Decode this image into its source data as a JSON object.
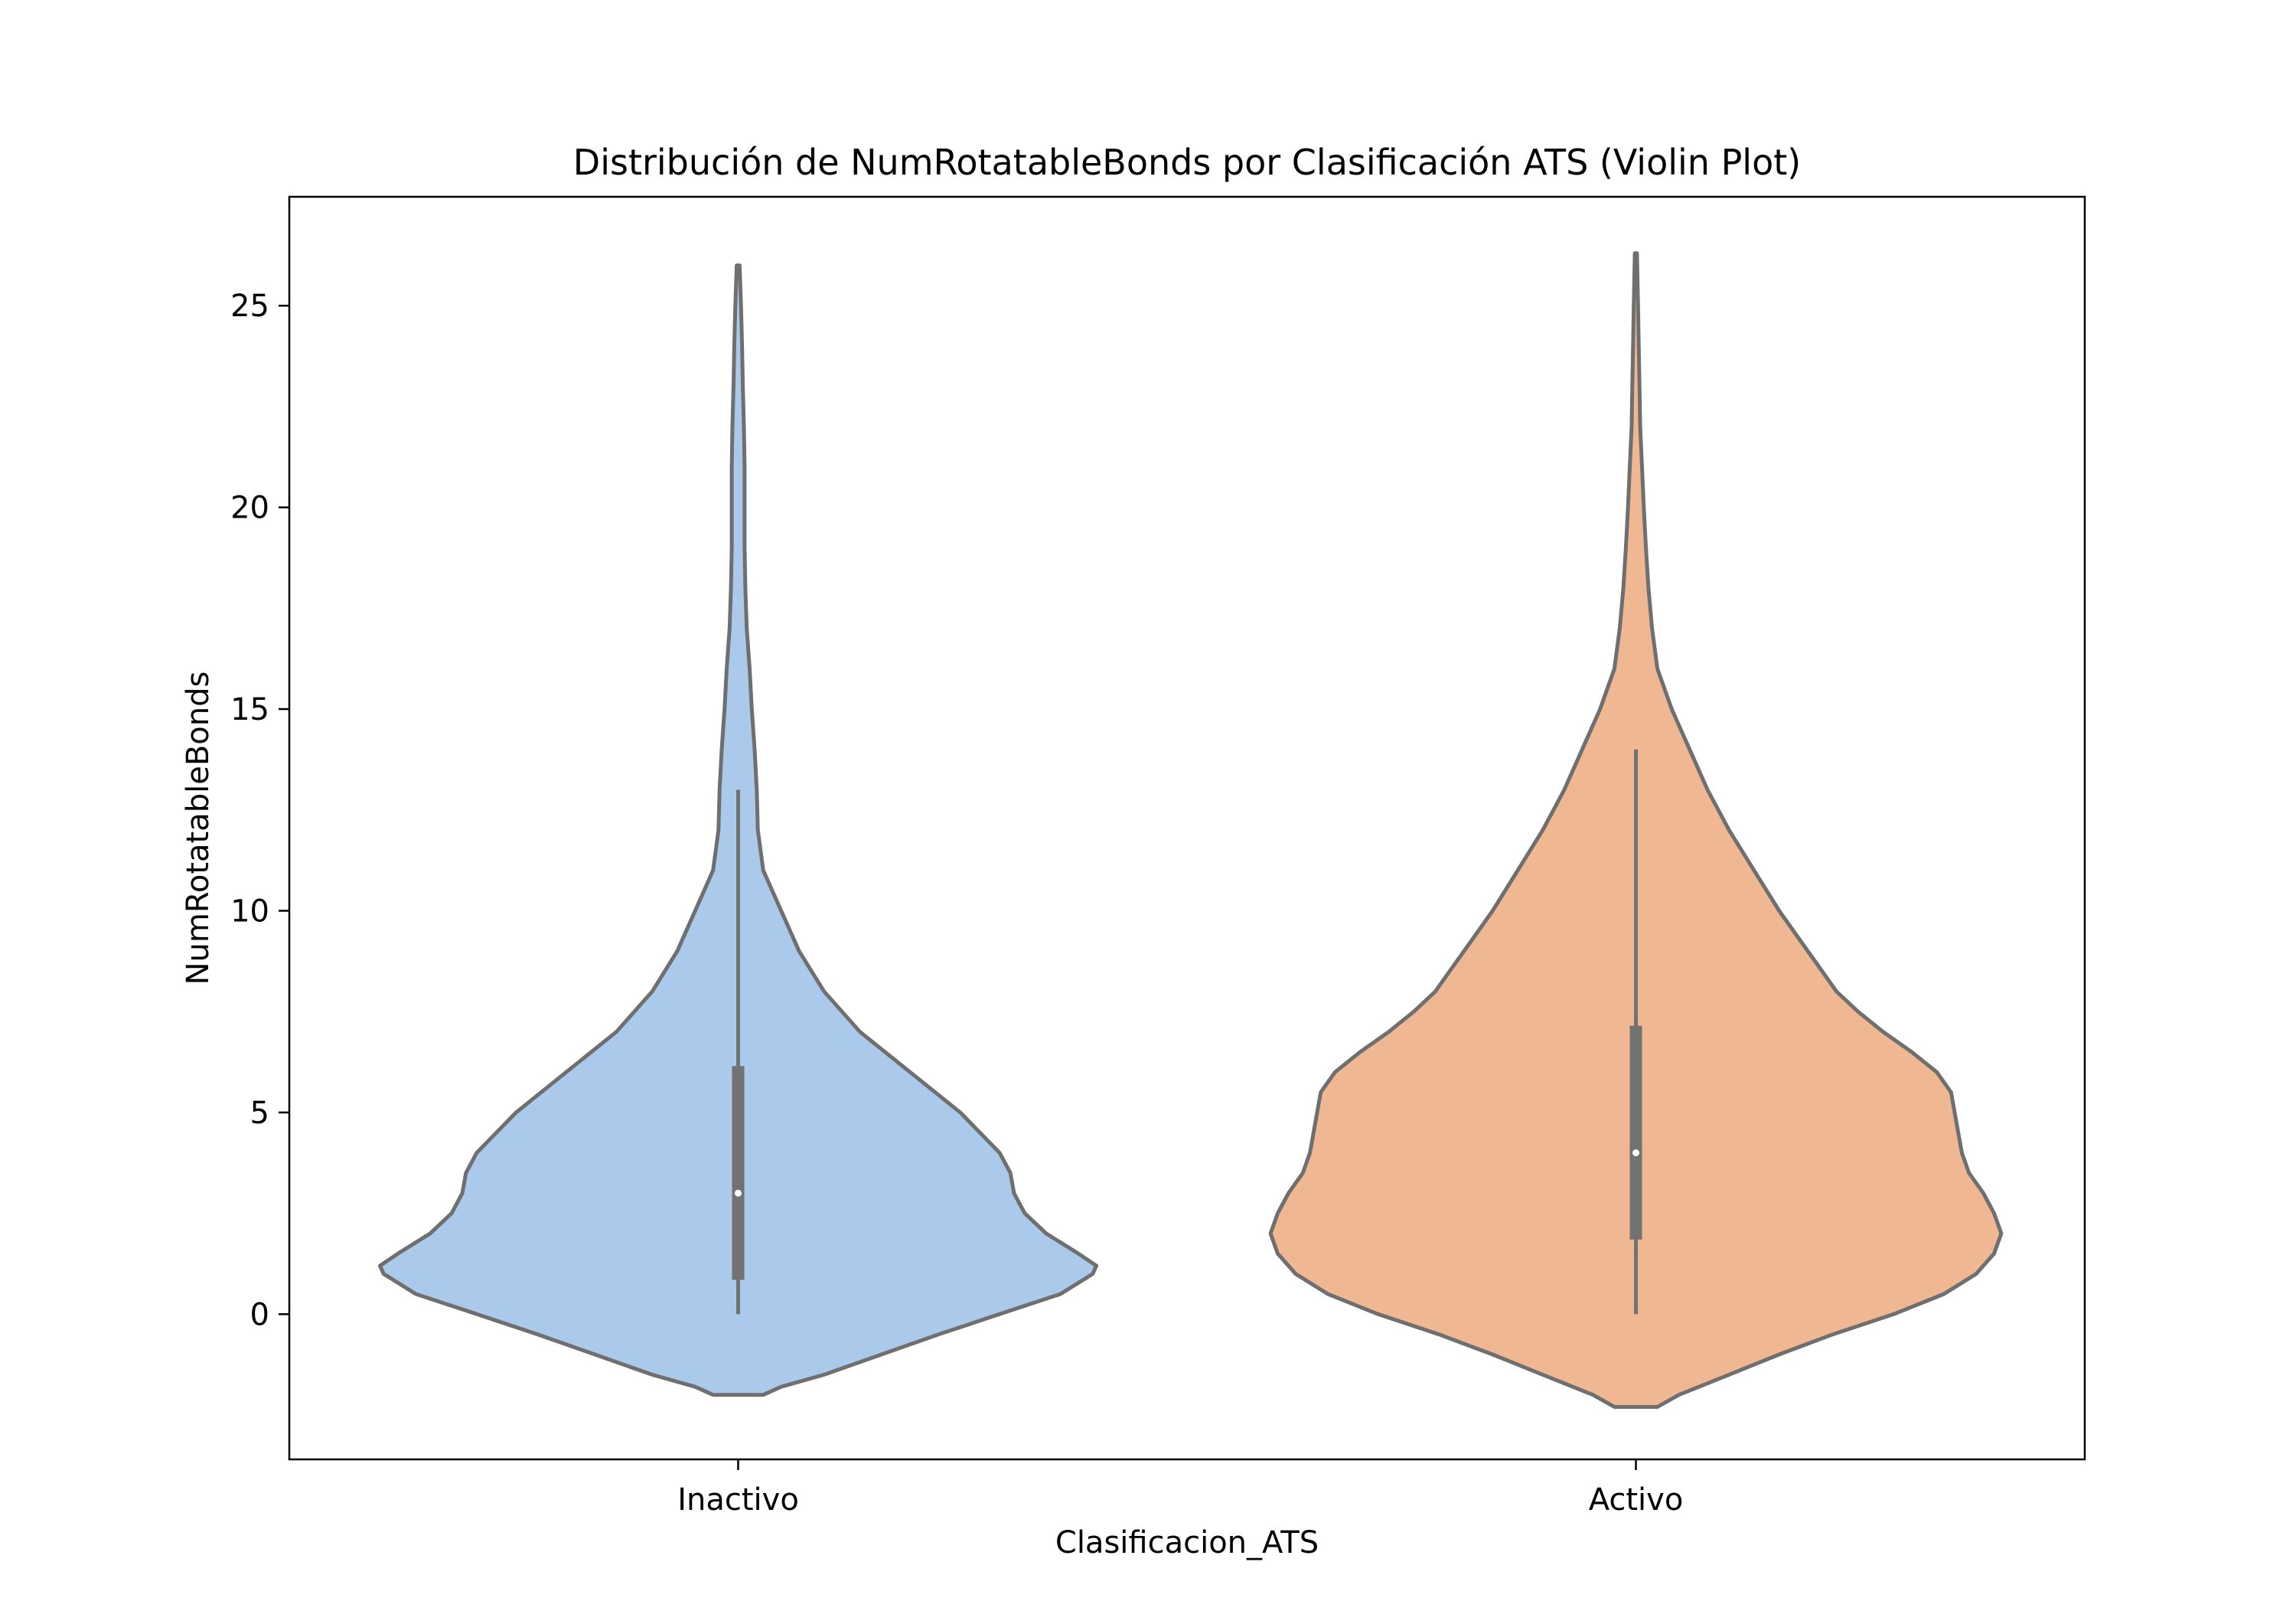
{
  "chart_data": {
    "type": "violin",
    "title": "Distribución de NumRotatableBonds por Clasificación ATS (Violin Plot)",
    "xlabel": "Clasificacion_ATS",
    "ylabel": "NumRotatableBonds",
    "categories": [
      "Inactivo",
      "Activo"
    ],
    "ylim": [
      -3.6,
      27.7
    ],
    "yticks": [
      0,
      5,
      10,
      15,
      20,
      25
    ],
    "grid": false,
    "colors": {
      "Inactivo": "#abc9ea",
      "Activo": "#efb792",
      "outline": "#6f6f6f",
      "box": "#727272",
      "median": "#ffffff"
    },
    "violins": [
      {
        "category": "Inactivo",
        "range": [
          -2.0,
          26.0
        ],
        "box": {
          "whisker_low": 0,
          "q1": 0.85,
          "median": 3,
          "q3": 6.15,
          "whisker_high": 13
        },
        "density_profile": [
          [
            -2.0,
            0.07
          ],
          [
            -1.8,
            0.12
          ],
          [
            -1.5,
            0.24
          ],
          [
            -1.0,
            0.4
          ],
          [
            -0.5,
            0.56
          ],
          [
            0.0,
            0.73
          ],
          [
            0.5,
            0.9
          ],
          [
            1.0,
            0.99
          ],
          [
            1.2,
            1.0
          ],
          [
            1.5,
            0.95
          ],
          [
            2.0,
            0.86
          ],
          [
            2.5,
            0.8
          ],
          [
            3.0,
            0.77
          ],
          [
            3.5,
            0.76
          ],
          [
            4.0,
            0.73
          ],
          [
            5.0,
            0.62
          ],
          [
            6.0,
            0.48
          ],
          [
            7.0,
            0.34
          ],
          [
            8.0,
            0.24
          ],
          [
            9.0,
            0.17
          ],
          [
            10.0,
            0.12
          ],
          [
            11.0,
            0.07
          ],
          [
            12.0,
            0.055
          ],
          [
            13.0,
            0.052
          ],
          [
            14.0,
            0.046
          ],
          [
            15.0,
            0.038
          ],
          [
            16.0,
            0.032
          ],
          [
            17.0,
            0.024
          ],
          [
            18.0,
            0.02
          ],
          [
            19.0,
            0.018
          ],
          [
            20.0,
            0.018
          ],
          [
            21.0,
            0.018
          ],
          [
            22.0,
            0.016
          ],
          [
            23.0,
            0.013
          ],
          [
            24.0,
            0.011
          ],
          [
            25.0,
            0.008
          ],
          [
            26.0,
            0.004
          ]
        ]
      },
      {
        "category": "Activo",
        "range": [
          -2.3,
          26.3
        ],
        "box": {
          "whisker_low": 0,
          "q1": 1.85,
          "median": 4,
          "q3": 7.15,
          "whisker_high": 14
        },
        "density_profile": [
          [
            -2.3,
            0.06
          ],
          [
            -2.0,
            0.12
          ],
          [
            -1.5,
            0.26
          ],
          [
            -1.0,
            0.4
          ],
          [
            -0.5,
            0.55
          ],
          [
            0.0,
            0.72
          ],
          [
            0.5,
            0.86
          ],
          [
            1.0,
            0.95
          ],
          [
            1.5,
            1.0
          ],
          [
            2.0,
            1.02
          ],
          [
            2.5,
            1.0
          ],
          [
            3.0,
            0.97
          ],
          [
            3.5,
            0.93
          ],
          [
            4.0,
            0.91
          ],
          [
            4.5,
            0.9
          ],
          [
            5.0,
            0.89
          ],
          [
            5.5,
            0.88
          ],
          [
            6.0,
            0.84
          ],
          [
            6.5,
            0.77
          ],
          [
            7.0,
            0.69
          ],
          [
            7.5,
            0.62
          ],
          [
            8.0,
            0.56
          ],
          [
            8.5,
            0.52
          ],
          [
            9.0,
            0.48
          ],
          [
            10.0,
            0.4
          ],
          [
            11.0,
            0.33
          ],
          [
            12.0,
            0.26
          ],
          [
            13.0,
            0.2
          ],
          [
            14.0,
            0.15
          ],
          [
            15.0,
            0.1
          ],
          [
            16.0,
            0.06
          ],
          [
            17.0,
            0.045
          ],
          [
            18.0,
            0.035
          ],
          [
            19.0,
            0.028
          ],
          [
            20.0,
            0.022
          ],
          [
            21.0,
            0.017
          ],
          [
            22.0,
            0.012
          ],
          [
            23.0,
            0.01
          ],
          [
            24.0,
            0.008
          ],
          [
            25.0,
            0.006
          ],
          [
            26.3,
            0.003
          ]
        ]
      }
    ]
  }
}
